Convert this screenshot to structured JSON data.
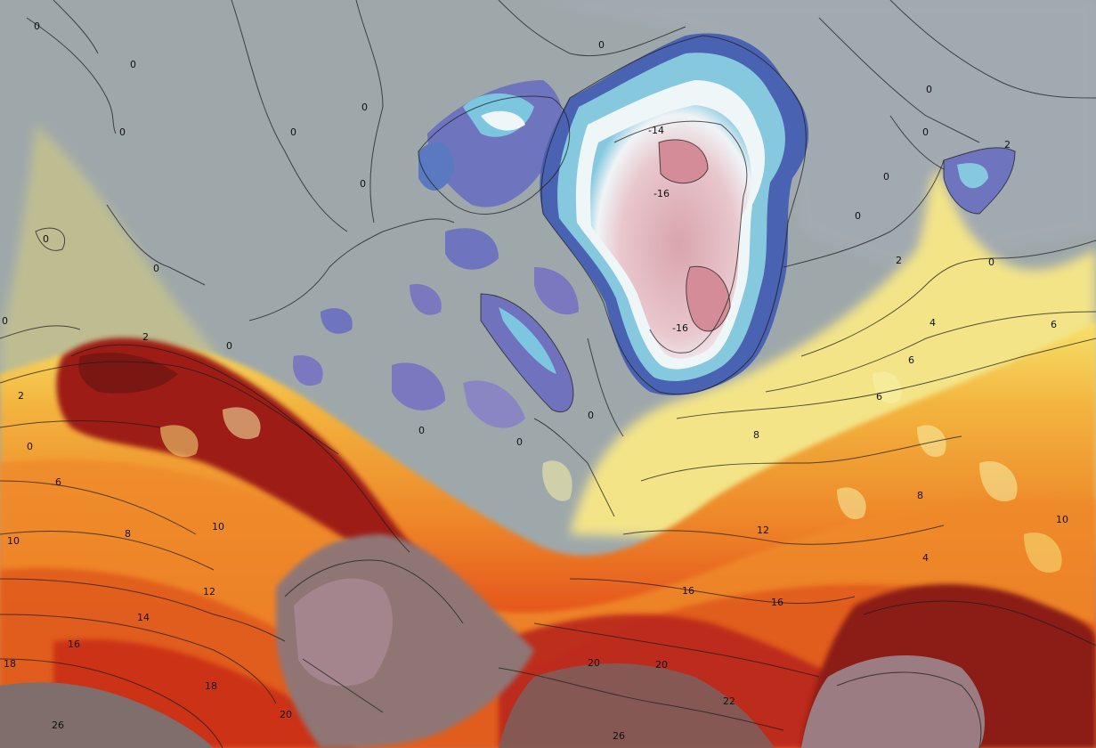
{
  "map": {
    "kind": "surface temperature contour map",
    "colors": {
      "arctic_ocean_grey": "#9ea8aa",
      "greenland_ice_pink": "#e6c3c8",
      "greenland_core_pink": "#d89aa4",
      "ice_edge_white": "#eef6f8",
      "ice_cyan": "#7cc6df",
      "ice_blue": "#4c79b8",
      "ice_purple": "#7a78bf",
      "pale_yellow": "#f4ea96",
      "yellow": "#f6e26a",
      "orange": "#f3a23a",
      "deep_orange": "#ec6f1c",
      "red": "#d7361a",
      "dark_red": "#a81a12",
      "maroon": "#7a1a16",
      "warm_grey_land": "#8a7472",
      "mauve_land": "#a7858d"
    },
    "contour_labels": [
      {
        "id": "l0a",
        "text": "0"
      },
      {
        "id": "l0b",
        "text": "0"
      },
      {
        "id": "l0c",
        "text": "0"
      },
      {
        "id": "l0d",
        "text": "0"
      },
      {
        "id": "l0e",
        "text": "0"
      },
      {
        "id": "l0f",
        "text": "0"
      },
      {
        "id": "l0g",
        "text": "0"
      },
      {
        "id": "l0h",
        "text": "0"
      },
      {
        "id": "l0i",
        "text": "0"
      },
      {
        "id": "l0j",
        "text": "0"
      },
      {
        "id": "l0k",
        "text": "0"
      },
      {
        "id": "l0l",
        "text": "0"
      },
      {
        "id": "l0m",
        "text": "0"
      },
      {
        "id": "l0n",
        "text": "0"
      },
      {
        "id": "l0o",
        "text": "0"
      },
      {
        "id": "l0p",
        "text": "0"
      },
      {
        "id": "l0q",
        "text": "0"
      },
      {
        "id": "l0r",
        "text": "0"
      },
      {
        "id": "l0s",
        "text": "0"
      },
      {
        "id": "l0t",
        "text": "0"
      },
      {
        "id": "l2a",
        "text": "2"
      },
      {
        "id": "l2b",
        "text": "2"
      },
      {
        "id": "l2c",
        "text": "2"
      },
      {
        "id": "l2d",
        "text": "2"
      },
      {
        "id": "lm14",
        "text": "-14"
      },
      {
        "id": "lm16a",
        "text": "-16"
      },
      {
        "id": "lm16b",
        "text": "-16"
      },
      {
        "id": "l4a",
        "text": "4"
      },
      {
        "id": "l4b",
        "text": "4"
      },
      {
        "id": "l6a",
        "text": "6"
      },
      {
        "id": "l6b",
        "text": "6"
      },
      {
        "id": "l6c",
        "text": "6"
      },
      {
        "id": "l6d",
        "text": "6"
      },
      {
        "id": "l8a",
        "text": "8"
      },
      {
        "id": "l8b",
        "text": "8"
      },
      {
        "id": "l8c",
        "text": "8"
      },
      {
        "id": "l10a",
        "text": "10"
      },
      {
        "id": "l10b",
        "text": "10"
      },
      {
        "id": "l10c",
        "text": "10"
      },
      {
        "id": "l12a",
        "text": "12"
      },
      {
        "id": "l12b",
        "text": "12"
      },
      {
        "id": "l14",
        "text": "14"
      },
      {
        "id": "l16a",
        "text": "16"
      },
      {
        "id": "l16b",
        "text": "16"
      },
      {
        "id": "l16c",
        "text": "16"
      },
      {
        "id": "l18a",
        "text": "18"
      },
      {
        "id": "l18b",
        "text": "18"
      },
      {
        "id": "l20a",
        "text": "20"
      },
      {
        "id": "l20b",
        "text": "20"
      },
      {
        "id": "l20c",
        "text": "20"
      },
      {
        "id": "l22",
        "text": "22"
      },
      {
        "id": "l26a",
        "text": "26"
      },
      {
        "id": "l26b",
        "text": "26"
      }
    ]
  }
}
